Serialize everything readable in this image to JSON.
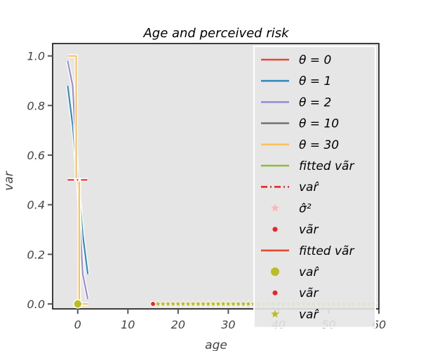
{
  "chart_data": {
    "type": "line",
    "title": "Age and perceived risk",
    "xlabel": "age",
    "ylabel": "var",
    "xlim": [
      -5,
      60
    ],
    "ylim": [
      -0.02,
      1.05
    ],
    "x_ticks": [
      0,
      10,
      20,
      30,
      40,
      50,
      60
    ],
    "y_ticks": [
      0.0,
      0.2,
      0.4,
      0.6,
      0.8,
      1.0
    ],
    "x_tick_labels": [
      "0",
      "10",
      "20",
      "30",
      "40",
      "50",
      "60"
    ],
    "y_tick_labels": [
      "0.0",
      "0.2",
      "0.4",
      "0.6",
      "0.8",
      "1.0"
    ],
    "grid": false,
    "legend_position": "upper-right",
    "series": [
      {
        "name": "θ = 0",
        "kind": "line",
        "color": "#E24A33",
        "x": [],
        "y": []
      },
      {
        "name": "θ = 1",
        "kind": "line",
        "color": "#348ABD",
        "x": [
          -2,
          -1,
          0,
          1,
          2
        ],
        "y": [
          0.88,
          0.72,
          0.5,
          0.28,
          0.12
        ]
      },
      {
        "name": "θ = 2",
        "kind": "line",
        "color": "#988ED5",
        "x": [
          -2,
          -1,
          0,
          1,
          2
        ],
        "y": [
          0.98,
          0.88,
          0.5,
          0.12,
          0.02
        ]
      },
      {
        "name": "θ = 10",
        "kind": "line",
        "color": "#777777",
        "x": [],
        "y": []
      },
      {
        "name": "θ = 30",
        "kind": "line",
        "color": "#FBC15E",
        "x": [
          -2,
          -0.3,
          -0.3,
          0.3,
          0.3,
          2
        ],
        "y": [
          1.0,
          1.0,
          0.5,
          0.5,
          0.0,
          0.0
        ]
      },
      {
        "name": "fitted vãr",
        "kind": "line",
        "color": "#8EBA42",
        "x": [],
        "y": []
      },
      {
        "name": "var̂",
        "kind": "dashdot",
        "color": "#E8262A",
        "x": [
          -2,
          2
        ],
        "y": [
          0.5,
          0.5
        ]
      },
      {
        "name": "σ̂²",
        "kind": "star",
        "color": "#FFB5B8",
        "x": [],
        "y": []
      },
      {
        "name": "vãr",
        "kind": "dot",
        "color": "#E8262A",
        "x": [],
        "y": []
      },
      {
        "name": "fitted vãr",
        "kind": "line",
        "color": "#E24A33",
        "x": [],
        "y": []
      },
      {
        "name": "var̂",
        "kind": "circle",
        "color": "#BCBD22",
        "x": [
          0
        ],
        "y": [
          0.0
        ]
      },
      {
        "name": "vãr",
        "kind": "dot",
        "color": "#E8262A",
        "x": [
          15
        ],
        "y": [
          0.0
        ]
      },
      {
        "name": "var̂",
        "kind": "star",
        "color": "#BCBD22",
        "x": [
          16,
          17,
          18,
          19,
          20,
          21,
          22,
          23,
          24,
          25,
          26,
          27,
          28,
          29,
          30,
          31,
          32,
          33,
          34,
          35,
          36,
          37,
          38,
          39,
          40,
          41,
          42,
          43,
          44,
          45,
          46,
          47,
          48,
          49,
          50,
          51,
          52,
          53,
          54,
          55,
          56,
          57,
          58,
          59
        ],
        "y": [
          0,
          0,
          0,
          0,
          0,
          0,
          0,
          0,
          0,
          0,
          0,
          0,
          0,
          0,
          0,
          0,
          0,
          0,
          0,
          0,
          0,
          0,
          0,
          0,
          0,
          0,
          0,
          0,
          0,
          0,
          0,
          0,
          0,
          0,
          0,
          0,
          0,
          0,
          0,
          0,
          0,
          0,
          0,
          0
        ]
      }
    ]
  }
}
